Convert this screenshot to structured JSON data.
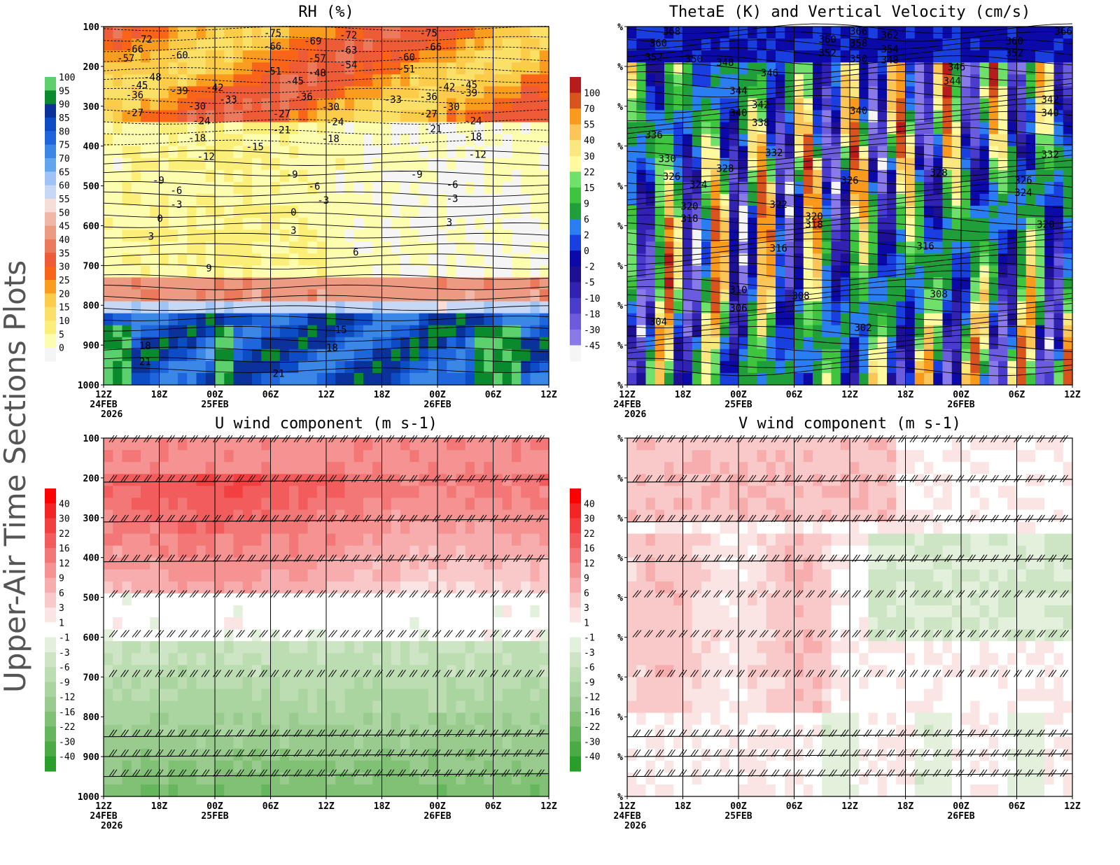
{
  "side_title": "Upper-Air Time Sections Plots",
  "time_axis": {
    "ticks": [
      "12Z",
      "18Z",
      "00Z",
      "06Z",
      "12Z",
      "18Z",
      "00Z",
      "06Z",
      "12Z"
    ],
    "dates": [
      "24FEB",
      "",
      "25FEB",
      "",
      "",
      "",
      "26FEB",
      "",
      ""
    ],
    "year": "2026"
  },
  "chart_data": [
    {
      "id": "rh",
      "type": "heatmap",
      "title": "RH (%)",
      "ylabel_ticks": [
        "100",
        "200",
        "300",
        "400",
        "500",
        "600",
        "700",
        "800",
        "900",
        "1000"
      ],
      "ylim": [
        1000,
        100
      ],
      "colorbar": [
        "0",
        "5",
        "10",
        "15",
        "20",
        "25",
        "30",
        "35",
        "40",
        "45",
        "50",
        "55",
        "60",
        "65",
        "70",
        "75",
        "80",
        "85",
        "90",
        "95",
        "100"
      ],
      "colors": [
        "#f5f5f5",
        "#fdfdb0",
        "#fbef7a",
        "#fbe067",
        "#fbcc4a",
        "#fa9c1e",
        "#f86519",
        "#ed5b37",
        "#ea7a5b",
        "#ec9b82",
        "#f0b7a6",
        "#f8dcd8",
        "#c7d8f7",
        "#9ec4f6",
        "#62a4ee",
        "#3a87e6",
        "#1f66dc",
        "#0c4cc4",
        "#0b3299",
        "#0a8a2c",
        "#5bd06c"
      ],
      "contour_labels": [
        {
          "t": 0.07,
          "p": 140,
          "v": "-72"
        },
        {
          "t": 0.05,
          "p": 165,
          "v": "-66"
        },
        {
          "t": 0.03,
          "p": 188,
          "v": "-57"
        },
        {
          "t": 0.15,
          "p": 180,
          "v": "-60"
        },
        {
          "t": 0.09,
          "p": 235,
          "v": "-48"
        },
        {
          "t": 0.06,
          "p": 256,
          "v": "-45"
        },
        {
          "t": 0.15,
          "p": 270,
          "v": "-39"
        },
        {
          "t": 0.05,
          "p": 280,
          "v": "-36"
        },
        {
          "t": 0.23,
          "p": 262,
          "v": "-42"
        },
        {
          "t": 0.26,
          "p": 292,
          "v": "-33"
        },
        {
          "t": 0.19,
          "p": 308,
          "v": "-30"
        },
        {
          "t": 0.05,
          "p": 325,
          "v": "-27"
        },
        {
          "t": 0.36,
          "p": 125,
          "v": "-75"
        },
        {
          "t": 0.36,
          "p": 158,
          "v": "-66"
        },
        {
          "t": 0.45,
          "p": 145,
          "v": "-69"
        },
        {
          "t": 0.36,
          "p": 220,
          "v": "-51"
        },
        {
          "t": 0.41,
          "p": 245,
          "v": "-45"
        },
        {
          "t": 0.46,
          "p": 225,
          "v": "-48"
        },
        {
          "t": 0.46,
          "p": 188,
          "v": "-57"
        },
        {
          "t": 0.53,
          "p": 130,
          "v": "-72"
        },
        {
          "t": 0.53,
          "p": 168,
          "v": "-63"
        },
        {
          "t": 0.53,
          "p": 205,
          "v": "-54"
        },
        {
          "t": 0.43,
          "p": 285,
          "v": "-36"
        },
        {
          "t": 0.49,
          "p": 310,
          "v": "-30"
        },
        {
          "t": 0.66,
          "p": 185,
          "v": "-60"
        },
        {
          "t": 0.66,
          "p": 215,
          "v": "-51"
        },
        {
          "t": 0.63,
          "p": 292,
          "v": "-33"
        },
        {
          "t": 0.71,
          "p": 125,
          "v": "-75"
        },
        {
          "t": 0.72,
          "p": 160,
          "v": "-66"
        },
        {
          "t": 0.75,
          "p": 260,
          "v": "-42"
        },
        {
          "t": 0.71,
          "p": 285,
          "v": "-36"
        },
        {
          "t": 0.76,
          "p": 310,
          "v": "-30"
        },
        {
          "t": 0.8,
          "p": 255,
          "v": "-45"
        },
        {
          "t": 0.8,
          "p": 275,
          "v": "-39"
        },
        {
          "t": 0.71,
          "p": 328,
          "v": "-27"
        },
        {
          "t": 0.81,
          "p": 345,
          "v": "-24"
        },
        {
          "t": 0.72,
          "p": 365,
          "v": "-21"
        },
        {
          "t": 0.81,
          "p": 385,
          "v": "-18"
        },
        {
          "t": 0.82,
          "p": 430,
          "v": "-12"
        },
        {
          "t": 0.2,
          "p": 345,
          "v": "-24"
        },
        {
          "t": 0.38,
          "p": 328,
          "v": "-27"
        },
        {
          "t": 0.38,
          "p": 368,
          "v": "-21"
        },
        {
          "t": 0.5,
          "p": 348,
          "v": "-24"
        },
        {
          "t": 0.49,
          "p": 390,
          "v": "-18"
        },
        {
          "t": 0.32,
          "p": 410,
          "v": "-15"
        },
        {
          "t": 0.19,
          "p": 388,
          "v": "-18"
        },
        {
          "t": 0.21,
          "p": 435,
          "v": "-12"
        },
        {
          "t": 0.41,
          "p": 480,
          "v": "-9"
        },
        {
          "t": 0.69,
          "p": 480,
          "v": "-9"
        },
        {
          "t": 0.11,
          "p": 495,
          "v": "-9"
        },
        {
          "t": 0.15,
          "p": 520,
          "v": "-6"
        },
        {
          "t": 0.15,
          "p": 555,
          "v": "-3"
        },
        {
          "t": 0.46,
          "p": 510,
          "v": "-6"
        },
        {
          "t": 0.48,
          "p": 545,
          "v": "-3"
        },
        {
          "t": 0.77,
          "p": 505,
          "v": "-6"
        },
        {
          "t": 0.77,
          "p": 540,
          "v": "-3"
        },
        {
          "t": 0.12,
          "p": 590,
          "v": "0"
        },
        {
          "t": 0.42,
          "p": 575,
          "v": "0"
        },
        {
          "t": 0.1,
          "p": 635,
          "v": "3"
        },
        {
          "t": 0.42,
          "p": 620,
          "v": "3"
        },
        {
          "t": 0.77,
          "p": 600,
          "v": "3"
        },
        {
          "t": 0.56,
          "p": 675,
          "v": "6"
        },
        {
          "t": 0.23,
          "p": 715,
          "v": "9"
        },
        {
          "t": 0.52,
          "p": 870,
          "v": "15"
        },
        {
          "t": 0.5,
          "p": 915,
          "v": "18"
        },
        {
          "t": 0.08,
          "p": 910,
          "v": "18"
        },
        {
          "t": 0.08,
          "p": 950,
          "v": "21"
        },
        {
          "t": 0.38,
          "p": 980,
          "v": "21"
        }
      ]
    },
    {
      "id": "thetae",
      "type": "heatmap",
      "title": "ThetaE (K) and Vertical Velocity (cm/s)",
      "ylabel_ticks": [
        "%",
        "%",
        "%",
        "%",
        "%",
        "%",
        "%",
        "%",
        "%",
        "%"
      ],
      "colorbar": [
        "-45",
        "-30",
        "-18",
        "-10",
        "-5",
        "-2",
        "0",
        "2",
        "6",
        "9",
        "15",
        "22",
        "30",
        "40",
        "55",
        "70",
        "100"
      ],
      "colors": [
        "#f5f5f5",
        "#8a7ae8",
        "#6b5cde",
        "#4a3ccc",
        "#3122b2",
        "#1d1095",
        "#0b0aa6",
        "#1a3fe0",
        "#2a7ef2",
        "#1f9e3a",
        "#3ec43e",
        "#6fe06a",
        "#fff9a0",
        "#fbe780",
        "#fbc558",
        "#f99a1c",
        "#d9531c",
        "#b71c1c"
      ],
      "contour_labels": [
        {
          "t": 0.08,
          "p": 120,
          "v": "368"
        },
        {
          "t": 0.05,
          "p": 150,
          "v": "360"
        },
        {
          "t": 0.04,
          "p": 185,
          "v": "352"
        },
        {
          "t": 0.13,
          "p": 190,
          "v": "350"
        },
        {
          "t": 0.2,
          "p": 198,
          "v": "348"
        },
        {
          "t": 0.3,
          "p": 225,
          "v": "346"
        },
        {
          "t": 0.23,
          "p": 270,
          "v": "344"
        },
        {
          "t": 0.23,
          "p": 325,
          "v": "340"
        },
        {
          "t": 0.28,
          "p": 305,
          "v": "342"
        },
        {
          "t": 0.28,
          "p": 350,
          "v": "338"
        },
        {
          "t": 0.43,
          "p": 140,
          "v": "360"
        },
        {
          "t": 0.43,
          "p": 175,
          "v": "352"
        },
        {
          "t": 0.5,
          "p": 120,
          "v": "366"
        },
        {
          "t": 0.5,
          "p": 150,
          "v": "358"
        },
        {
          "t": 0.5,
          "p": 190,
          "v": "350"
        },
        {
          "t": 0.57,
          "p": 130,
          "v": "362"
        },
        {
          "t": 0.57,
          "p": 165,
          "v": "354"
        },
        {
          "t": 0.57,
          "p": 192,
          "v": "348"
        },
        {
          "t": 0.5,
          "p": 320,
          "v": "340"
        },
        {
          "t": 0.72,
          "p": 210,
          "v": "346"
        },
        {
          "t": 0.71,
          "p": 245,
          "v": "344"
        },
        {
          "t": 0.85,
          "p": 145,
          "v": "360"
        },
        {
          "t": 0.85,
          "p": 175,
          "v": "352"
        },
        {
          "t": 0.96,
          "p": 120,
          "v": "366"
        },
        {
          "t": 0.93,
          "p": 292,
          "v": "342"
        },
        {
          "t": 0.93,
          "p": 325,
          "v": "340"
        },
        {
          "t": 0.04,
          "p": 380,
          "v": "336"
        },
        {
          "t": 0.07,
          "p": 440,
          "v": "330"
        },
        {
          "t": 0.08,
          "p": 485,
          "v": "326"
        },
        {
          "t": 0.14,
          "p": 505,
          "v": "324"
        },
        {
          "t": 0.2,
          "p": 465,
          "v": "328"
        },
        {
          "t": 0.31,
          "p": 425,
          "v": "332"
        },
        {
          "t": 0.12,
          "p": 560,
          "v": "320"
        },
        {
          "t": 0.12,
          "p": 590,
          "v": "318"
        },
        {
          "t": 0.32,
          "p": 555,
          "v": "322"
        },
        {
          "t": 0.4,
          "p": 585,
          "v": "320"
        },
        {
          "t": 0.4,
          "p": 605,
          "v": "318"
        },
        {
          "t": 0.48,
          "p": 495,
          "v": "326"
        },
        {
          "t": 0.68,
          "p": 475,
          "v": "328"
        },
        {
          "t": 0.93,
          "p": 430,
          "v": "332"
        },
        {
          "t": 0.87,
          "p": 495,
          "v": "326"
        },
        {
          "t": 0.87,
          "p": 525,
          "v": "324"
        },
        {
          "t": 0.92,
          "p": 605,
          "v": "320"
        },
        {
          "t": 0.32,
          "p": 665,
          "v": "316"
        },
        {
          "t": 0.65,
          "p": 660,
          "v": "316"
        },
        {
          "t": 0.23,
          "p": 770,
          "v": "310"
        },
        {
          "t": 0.23,
          "p": 815,
          "v": "306"
        },
        {
          "t": 0.37,
          "p": 785,
          "v": "308"
        },
        {
          "t": 0.68,
          "p": 780,
          "v": "308"
        },
        {
          "t": 0.05,
          "p": 850,
          "v": "304"
        },
        {
          "t": 0.51,
          "p": 865,
          "v": "302"
        }
      ]
    },
    {
      "id": "u",
      "type": "heatmap",
      "title": "U wind component (m s-1)",
      "ylabel_ticks": [
        "100",
        "200",
        "300",
        "400",
        "500",
        "600",
        "700",
        "800",
        "900",
        "1000"
      ],
      "colorbar": [
        "-40",
        "-30",
        "-22",
        "-16",
        "-12",
        "-9",
        "-6",
        "-3",
        "-1",
        "1",
        "3",
        "6",
        "9",
        "12",
        "16",
        "22",
        "30",
        "40"
      ],
      "colors": [
        "#2a9e2a",
        "#4aab44",
        "#66b65d",
        "#80c175",
        "#98cb8d",
        "#aad4a0",
        "#bcdcb2",
        "#cde5c4",
        "#e2f0dc",
        "#ffffff",
        "#fbe4e4",
        "#f9c8c8",
        "#f7adad",
        "#f59292",
        "#f37777",
        "#f25c5c",
        "#f24040",
        "#f22424",
        "#ff0000"
      ]
    },
    {
      "id": "v",
      "type": "heatmap",
      "title": "V wind component (m s-1)",
      "ylabel_ticks": [
        "%",
        "%",
        "%",
        "%",
        "%",
        "%",
        "%",
        "%",
        "%",
        "%"
      ],
      "colorbar": [
        "-40",
        "-30",
        "-22",
        "-16",
        "-12",
        "-9",
        "-6",
        "-3",
        "-1",
        "1",
        "3",
        "6",
        "9",
        "12",
        "16",
        "22",
        "30",
        "40"
      ],
      "colors": [
        "#2a9e2a",
        "#4aab44",
        "#66b65d",
        "#80c175",
        "#98cb8d",
        "#aad4a0",
        "#bcdcb2",
        "#cde5c4",
        "#e2f0dc",
        "#ffffff",
        "#fbe4e4",
        "#f9c8c8",
        "#f7adad",
        "#f59292",
        "#f37777",
        "#f25c5c",
        "#f24040",
        "#f22424",
        "#ff0000"
      ]
    }
  ]
}
